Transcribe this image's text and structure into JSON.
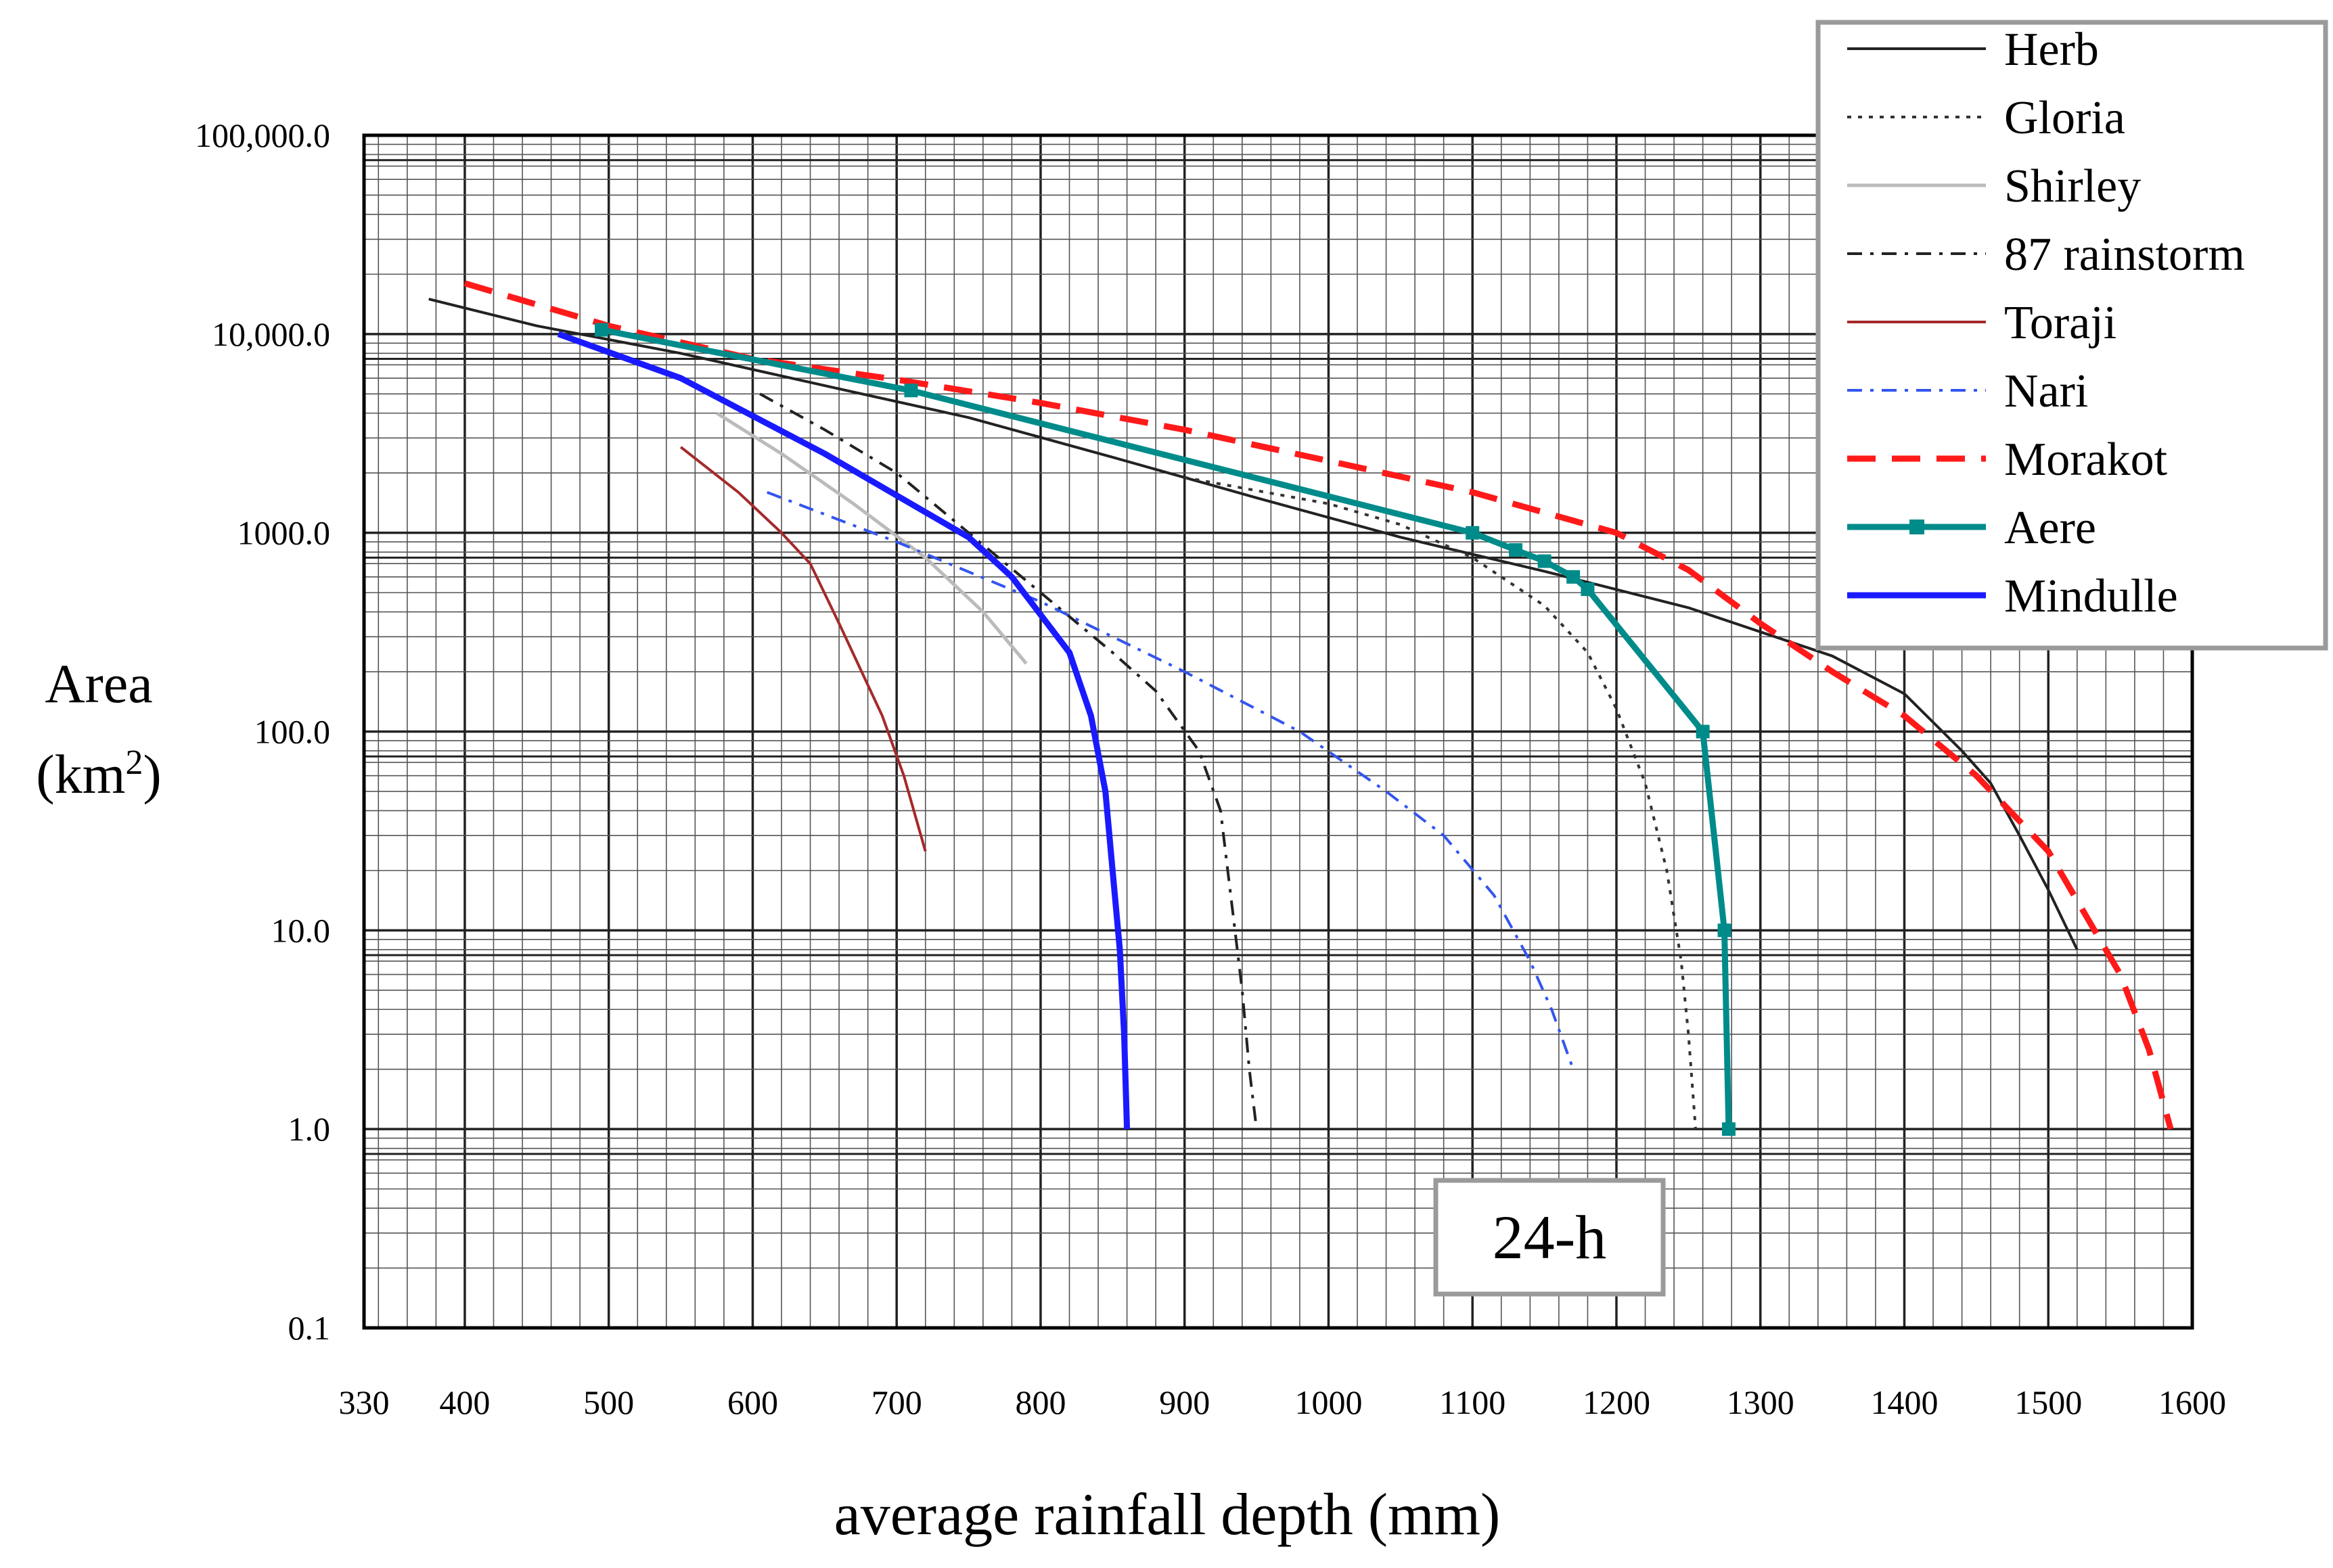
{
  "chart_data": {
    "type": "line",
    "title": "",
    "xlabel": "average rainfall depth (mm)",
    "ylabel": "Area",
    "ylabel_unit": "(km",
    "ylabel_unit_sup": "2",
    "ylabel_unit_close": ")",
    "x_scale": "linear",
    "y_scale": "log",
    "xlim": [
      330,
      1600
    ],
    "ylim": [
      0.1,
      100000
    ],
    "x_ticks": [
      330,
      400,
      500,
      600,
      700,
      800,
      900,
      1000,
      1100,
      1200,
      1300,
      1400,
      1500,
      1600
    ],
    "x_tick_labels": [
      "330",
      "400",
      "500",
      "600",
      "700",
      "800",
      "900",
      "1000",
      "1100",
      "1200",
      "1300",
      "1400",
      "1500",
      "1600"
    ],
    "y_ticks": [
      0.1,
      1,
      10,
      100,
      1000,
      10000,
      100000
    ],
    "y_tick_labels": [
      "0.1",
      "1.0",
      "10.0",
      "100.0",
      "1000.0",
      "10,000.0",
      "100,000.0"
    ],
    "grid": true,
    "legend_position": "top-right",
    "annotation": "24-h",
    "series": [
      {
        "name": "Herb",
        "color": "#222222",
        "dash": "solid",
        "marker": false,
        "points": [
          [
            375,
            15000
          ],
          [
            450,
            11000
          ],
          [
            550,
            8000
          ],
          [
            650,
            5500
          ],
          [
            750,
            3800
          ],
          [
            850,
            2400
          ],
          [
            950,
            1500
          ],
          [
            1050,
            950
          ],
          [
            1150,
            640
          ],
          [
            1250,
            420
          ],
          [
            1350,
            240
          ],
          [
            1400,
            155
          ],
          [
            1440,
            80
          ],
          [
            1460,
            55
          ],
          [
            1480,
            30
          ],
          [
            1500,
            16
          ],
          [
            1520,
            8
          ]
        ]
      },
      {
        "name": "Gloria",
        "color": "#333333",
        "dash": "dotted",
        "marker": false,
        "points": [
          [
            900,
            1900
          ],
          [
            1000,
            1400
          ],
          [
            1050,
            1100
          ],
          [
            1100,
            750
          ],
          [
            1150,
            430
          ],
          [
            1180,
            250
          ],
          [
            1200,
            130
          ],
          [
            1220,
            55
          ],
          [
            1235,
            20
          ],
          [
            1245,
            7
          ],
          [
            1250,
            3
          ],
          [
            1255,
            1
          ]
        ]
      },
      {
        "name": "Shirley",
        "color": "#bbbbbb",
        "dash": "solid",
        "marker": false,
        "points": [
          [
            575,
            4000
          ],
          [
            620,
            2500
          ],
          [
            670,
            1400
          ],
          [
            720,
            750
          ],
          [
            760,
            400
          ],
          [
            790,
            220
          ]
        ]
      },
      {
        "name": "87 rainstorm",
        "color": "#222222",
        "dash": "dashdot",
        "marker": false,
        "points": [
          [
            605,
            5000
          ],
          [
            650,
            3300
          ],
          [
            700,
            2000
          ],
          [
            750,
            1000
          ],
          [
            800,
            500
          ],
          [
            850,
            250
          ],
          [
            880,
            160
          ],
          [
            910,
            80
          ],
          [
            925,
            40
          ],
          [
            930,
            20
          ],
          [
            935,
            10
          ],
          [
            940,
            5
          ],
          [
            945,
            2
          ],
          [
            950,
            1
          ]
        ]
      },
      {
        "name": "Toraji",
        "color": "#a52a2a",
        "dash": "solid",
        "marker": false,
        "points": [
          [
            550,
            2700
          ],
          [
            590,
            1600
          ],
          [
            620,
            1000
          ],
          [
            640,
            700
          ],
          [
            660,
            350
          ],
          [
            690,
            120
          ],
          [
            705,
            60
          ],
          [
            720,
            25
          ]
        ]
      },
      {
        "name": "Nari",
        "color": "#3355ee",
        "dash": "dashdot",
        "marker": false,
        "points": [
          [
            610,
            1600
          ],
          [
            700,
            900
          ],
          [
            800,
            450
          ],
          [
            900,
            200
          ],
          [
            980,
            100
          ],
          [
            1040,
            50
          ],
          [
            1080,
            30
          ],
          [
            1115,
            15
          ],
          [
            1140,
            7
          ],
          [
            1155,
            4
          ],
          [
            1170,
            2
          ]
        ]
      },
      {
        "name": "Morakot",
        "color": "#ff1a1a",
        "dash": "dashed",
        "marker": false,
        "points": [
          [
            400,
            18000
          ],
          [
            500,
            11000
          ],
          [
            600,
            7500
          ],
          [
            700,
            5900
          ],
          [
            800,
            4500
          ],
          [
            900,
            3300
          ],
          [
            1000,
            2300
          ],
          [
            1100,
            1600
          ],
          [
            1200,
            1000
          ],
          [
            1250,
            650
          ],
          [
            1300,
            350
          ],
          [
            1350,
            200
          ],
          [
            1400,
            120
          ],
          [
            1450,
            60
          ],
          [
            1500,
            25
          ],
          [
            1550,
            6
          ],
          [
            1570,
            2.5
          ],
          [
            1585,
            1
          ]
        ]
      },
      {
        "name": "Aere",
        "color": "#008b8b",
        "dash": "solid",
        "marker": true,
        "points": [
          [
            495,
            10500
          ],
          [
            710,
            5200
          ],
          [
            1100,
            1000
          ],
          [
            1130,
            820
          ],
          [
            1150,
            720
          ],
          [
            1170,
            600
          ],
          [
            1180,
            520
          ],
          [
            1260,
            100
          ],
          [
            1275,
            10
          ],
          [
            1278,
            1
          ]
        ]
      },
      {
        "name": "Mindulle",
        "color": "#1a1aff",
        "dash": "solid",
        "marker": false,
        "points": [
          [
            465,
            10000
          ],
          [
            550,
            6000
          ],
          [
            650,
            2500
          ],
          [
            750,
            950
          ],
          [
            780,
            600
          ],
          [
            820,
            250
          ],
          [
            835,
            120
          ],
          [
            845,
            50
          ],
          [
            850,
            20
          ],
          [
            855,
            8
          ],
          [
            858,
            3
          ],
          [
            860,
            1
          ]
        ]
      }
    ]
  }
}
